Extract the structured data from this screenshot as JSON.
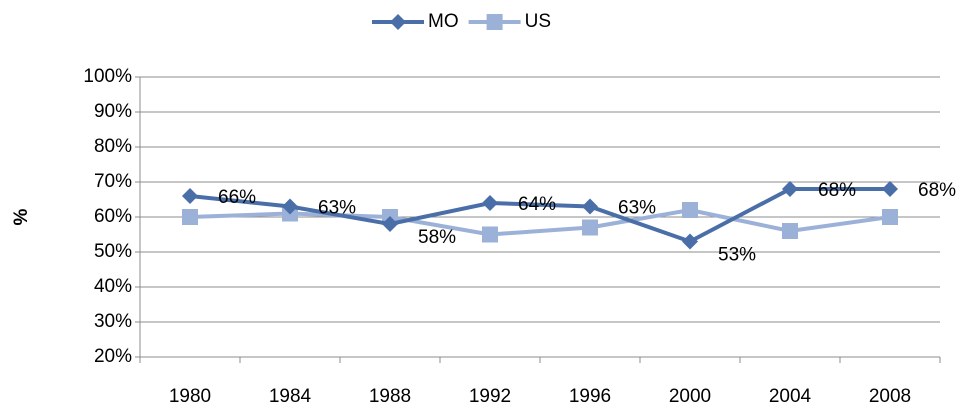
{
  "chart_data": {
    "type": "line",
    "y_label": "%",
    "categories": [
      "1980",
      "1984",
      "1988",
      "1992",
      "1996",
      "2000",
      "2004",
      "2008"
    ],
    "series": [
      {
        "name": "MO",
        "color": "#4a6fa8",
        "marker": "diamond",
        "values": [
          66,
          63,
          58,
          64,
          63,
          53,
          68,
          68
        ],
        "value_labels": [
          "66%",
          "63%",
          "58%",
          "64%",
          "63%",
          "53%",
          "68%",
          "68%"
        ]
      },
      {
        "name": "US",
        "color": "#9bb1d8",
        "marker": "square",
        "values": [
          60,
          61,
          60,
          55,
          57,
          62,
          56,
          60
        ]
      }
    ],
    "ylim": [
      20,
      100
    ],
    "yticks": [
      {
        "value": 20,
        "label": "20%"
      },
      {
        "value": 30,
        "label": "30%"
      },
      {
        "value": 40,
        "label": "40%"
      },
      {
        "value": 50,
        "label": "50%"
      },
      {
        "value": 60,
        "label": "60%"
      },
      {
        "value": 70,
        "label": "70%"
      },
      {
        "value": 80,
        "label": "80%"
      },
      {
        "value": 90,
        "label": "90%"
      },
      {
        "value": 100,
        "label": "100%"
      }
    ],
    "grid": true,
    "legend": "top"
  }
}
